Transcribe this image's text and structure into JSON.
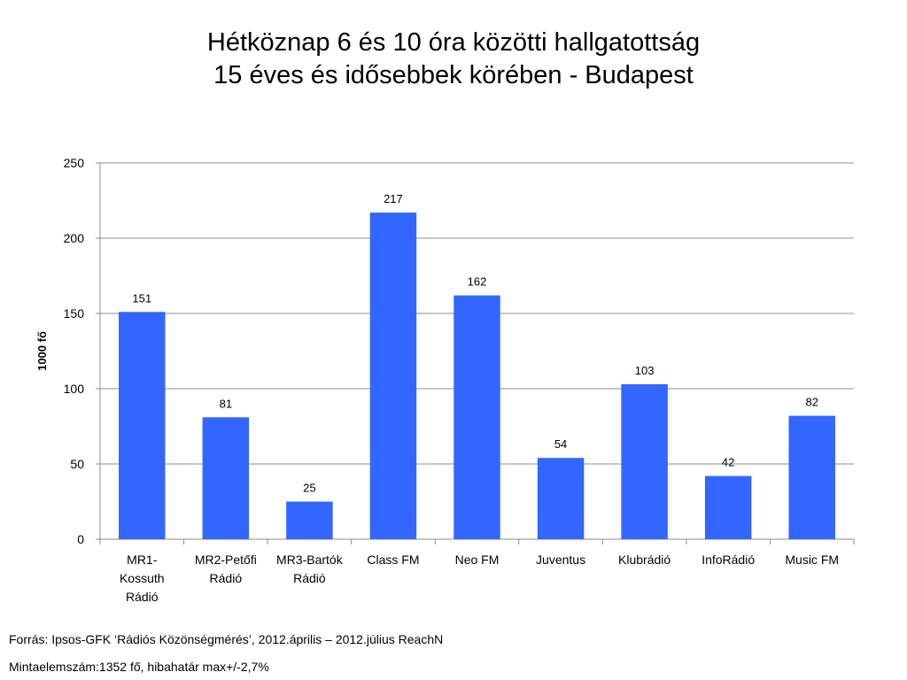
{
  "chart_data": {
    "type": "bar",
    "title": [
      "Hétköznap 6 és 10 óra közötti hallgatottság",
      "15 éves és idősebbek körében - Budapest"
    ],
    "ylabel": "1000 fő",
    "ylim": [
      0,
      250
    ],
    "yticks": [
      "0",
      "50",
      "100",
      "150",
      "200",
      "250"
    ],
    "grid": true,
    "categories": [
      [
        "MR1-",
        "Kossuth",
        "Rádió"
      ],
      [
        "MR2-Petőfi",
        "Rádió"
      ],
      [
        "MR3-Bartók",
        "Rádió"
      ],
      [
        "Class FM"
      ],
      [
        "Neo FM"
      ],
      [
        "Juventus"
      ],
      [
        "Klubrádió"
      ],
      [
        "InfoRádió"
      ],
      [
        "Music FM"
      ]
    ],
    "values": [
      151,
      81,
      25,
      217,
      162,
      54,
      103,
      42,
      82
    ],
    "color": "#3366ff"
  },
  "footer": {
    "source": "Forrás: Ipsos-GFK ‘Rádiós Közönségmérés’, 2012.április – 2012.július ReachN",
    "sample": "Mintaelemszám:1352 fő, hibahatár max+/-2,7%"
  }
}
